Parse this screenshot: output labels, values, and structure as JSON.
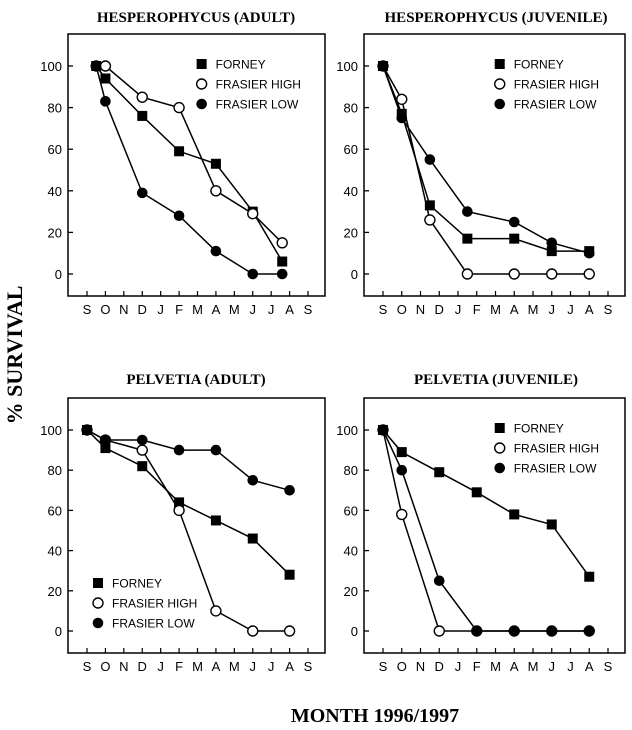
{
  "figure": {
    "ylabel": "% SURVIVAL",
    "xlabel": "MONTH 1996/1997"
  },
  "chart_data": [
    {
      "type": "line",
      "title": "HESPEROPHYCUS (ADULT)",
      "xlabel": "",
      "ylabel": "",
      "ylim": [
        0,
        100
      ],
      "yticks": [
        0,
        20,
        40,
        60,
        80,
        100
      ],
      "categories": [
        "S",
        "O",
        "N",
        "D",
        "J",
        "F",
        "M",
        "A",
        "M",
        "J",
        "J",
        "A",
        "S"
      ],
      "legend_position": "top-right",
      "series": [
        {
          "name": "FORNEY",
          "marker": "filled-square",
          "x": [
            0.5,
            1.0,
            3.0,
            5.0,
            7.0,
            9.0,
            10.6
          ],
          "y": [
            100,
            94,
            76,
            59,
            53,
            30,
            6
          ]
        },
        {
          "name": "FRASIER HIGH",
          "marker": "open-circle",
          "x": [
            0.5,
            1.0,
            3.0,
            5.0,
            7.0,
            9.0,
            10.6
          ],
          "y": [
            100,
            100,
            85,
            80,
            40,
            29,
            15
          ]
        },
        {
          "name": "FRASIER LOW",
          "marker": "filled-circle",
          "x": [
            0.5,
            1.0,
            3.0,
            5.0,
            7.0,
            9.0,
            10.6
          ],
          "y": [
            100,
            83,
            39,
            28,
            11,
            0,
            0
          ]
        }
      ]
    },
    {
      "type": "line",
      "title": "HESPEROPHYCUS (JUVENILE)",
      "xlabel": "",
      "ylabel": "",
      "ylim": [
        0,
        100
      ],
      "yticks": [
        0,
        20,
        40,
        60,
        80,
        100
      ],
      "categories": [
        "S",
        "O",
        "N",
        "D",
        "J",
        "F",
        "M",
        "A",
        "M",
        "J",
        "J",
        "A",
        "S"
      ],
      "legend_position": "top-right",
      "series": [
        {
          "name": "FORNEY",
          "marker": "filled-square",
          "x": [
            0,
            1,
            2.5,
            4.5,
            7,
            9,
            11
          ],
          "y": [
            100,
            77,
            33,
            17,
            17,
            11,
            11
          ]
        },
        {
          "name": "FRASIER HIGH",
          "marker": "open-circle",
          "x": [
            0,
            1,
            2.5,
            4.5,
            7,
            9,
            11
          ],
          "y": [
            100,
            84,
            26,
            0,
            0,
            0,
            0
          ]
        },
        {
          "name": "FRASIER LOW",
          "marker": "filled-circle",
          "x": [
            0,
            1,
            2.5,
            4.5,
            7,
            9,
            11
          ],
          "y": [
            100,
            75,
            55,
            30,
            25,
            15,
            10
          ]
        }
      ]
    },
    {
      "type": "line",
      "title": "PELVETIA (ADULT)",
      "xlabel": "",
      "ylabel": "",
      "ylim": [
        0,
        100
      ],
      "yticks": [
        0,
        20,
        40,
        60,
        80,
        100
      ],
      "categories": [
        "S",
        "O",
        "N",
        "D",
        "J",
        "F",
        "M",
        "A",
        "M",
        "J",
        "J",
        "A",
        "S"
      ],
      "legend_position": "bottom-left",
      "series": [
        {
          "name": "FORNEY",
          "marker": "filled-square",
          "x": [
            0,
            1,
            3,
            5,
            7,
            9,
            11
          ],
          "y": [
            100,
            91,
            82,
            64,
            55,
            46,
            28
          ]
        },
        {
          "name": "FRASIER HIGH",
          "marker": "open-circle",
          "x": [
            0,
            1,
            3,
            5,
            7,
            9,
            11
          ],
          "y": [
            100,
            95,
            90,
            60,
            10,
            0,
            0
          ]
        },
        {
          "name": "FRASIER LOW",
          "marker": "filled-circle",
          "x": [
            0,
            1,
            3,
            5,
            7,
            9,
            11
          ],
          "y": [
            100,
            95,
            95,
            90,
            90,
            75,
            70
          ]
        }
      ]
    },
    {
      "type": "line",
      "title": "PELVETIA (JUVENILE)",
      "xlabel": "",
      "ylabel": "",
      "ylim": [
        0,
        100
      ],
      "yticks": [
        0,
        20,
        40,
        60,
        80,
        100
      ],
      "categories": [
        "S",
        "O",
        "N",
        "D",
        "J",
        "F",
        "M",
        "A",
        "M",
        "J",
        "J",
        "A",
        "S"
      ],
      "legend_position": "top-right",
      "series": [
        {
          "name": "FORNEY",
          "marker": "filled-square",
          "x": [
            0,
            1,
            3,
            5,
            7,
            9,
            11
          ],
          "y": [
            100,
            89,
            79,
            69,
            58,
            53,
            27
          ]
        },
        {
          "name": "FRASIER HIGH",
          "marker": "open-circle",
          "x": [
            0,
            1,
            3,
            5,
            7,
            9,
            11
          ],
          "y": [
            100,
            58,
            0,
            0,
            0,
            0,
            0
          ]
        },
        {
          "name": "FRASIER LOW",
          "marker": "filled-circle",
          "x": [
            0,
            1,
            3,
            5,
            7,
            9,
            11
          ],
          "y": [
            100,
            80,
            25,
            0,
            0,
            0,
            0
          ]
        }
      ]
    }
  ]
}
